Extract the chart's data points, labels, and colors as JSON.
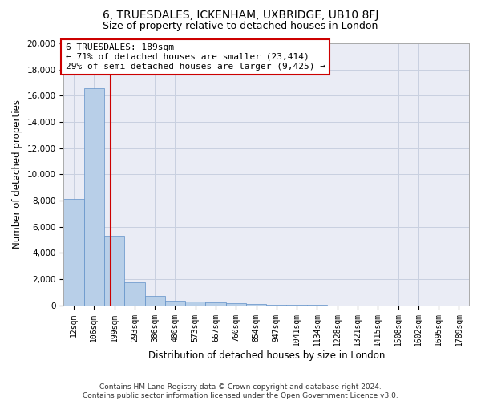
{
  "title": "6, TRUESDALES, ICKENHAM, UXBRIDGE, UB10 8FJ",
  "subtitle": "Size of property relative to detached houses in London",
  "xlabel": "Distribution of detached houses by size in London",
  "ylabel": "Number of detached properties",
  "bar_values": [
    8100,
    16600,
    5300,
    1750,
    700,
    350,
    280,
    200,
    150,
    100,
    50,
    20,
    10,
    5,
    3,
    2,
    1,
    1,
    0,
    0
  ],
  "bar_labels": [
    "12sqm",
    "106sqm",
    "199sqm",
    "293sqm",
    "386sqm",
    "480sqm",
    "573sqm",
    "667sqm",
    "760sqm",
    "854sqm",
    "947sqm",
    "1041sqm",
    "1134sqm",
    "1228sqm",
    "1321sqm",
    "1415sqm",
    "1508sqm",
    "1602sqm",
    "1695sqm",
    "1789sqm"
  ],
  "bar_color": "#b8cfe8",
  "bar_edge_color": "#6090c8",
  "vline_x": 1.82,
  "vline_color": "#cc0000",
  "annotation_line1": "6 TRUESDALES: 189sqm",
  "annotation_line2": "← 71% of detached houses are smaller (23,414)",
  "annotation_line3": "29% of semi-detached houses are larger (9,425) →",
  "annotation_box_color": "#cc0000",
  "ylim_max": 20000,
  "yticks": [
    0,
    2000,
    4000,
    6000,
    8000,
    10000,
    12000,
    14000,
    16000,
    18000,
    20000
  ],
  "grid_color": "#c8d0e0",
  "background_color": "#eaecf5",
  "footer_line1": "Contains HM Land Registry data © Crown copyright and database right 2024.",
  "footer_line2": "Contains public sector information licensed under the Open Government Licence v3.0.",
  "title_fontsize": 10,
  "subtitle_fontsize": 9,
  "xlabel_fontsize": 8.5,
  "ylabel_fontsize": 8.5,
  "annotation_fontsize": 8,
  "footer_fontsize": 6.5,
  "tick_fontsize": 7,
  "ytick_fontsize": 7.5
}
